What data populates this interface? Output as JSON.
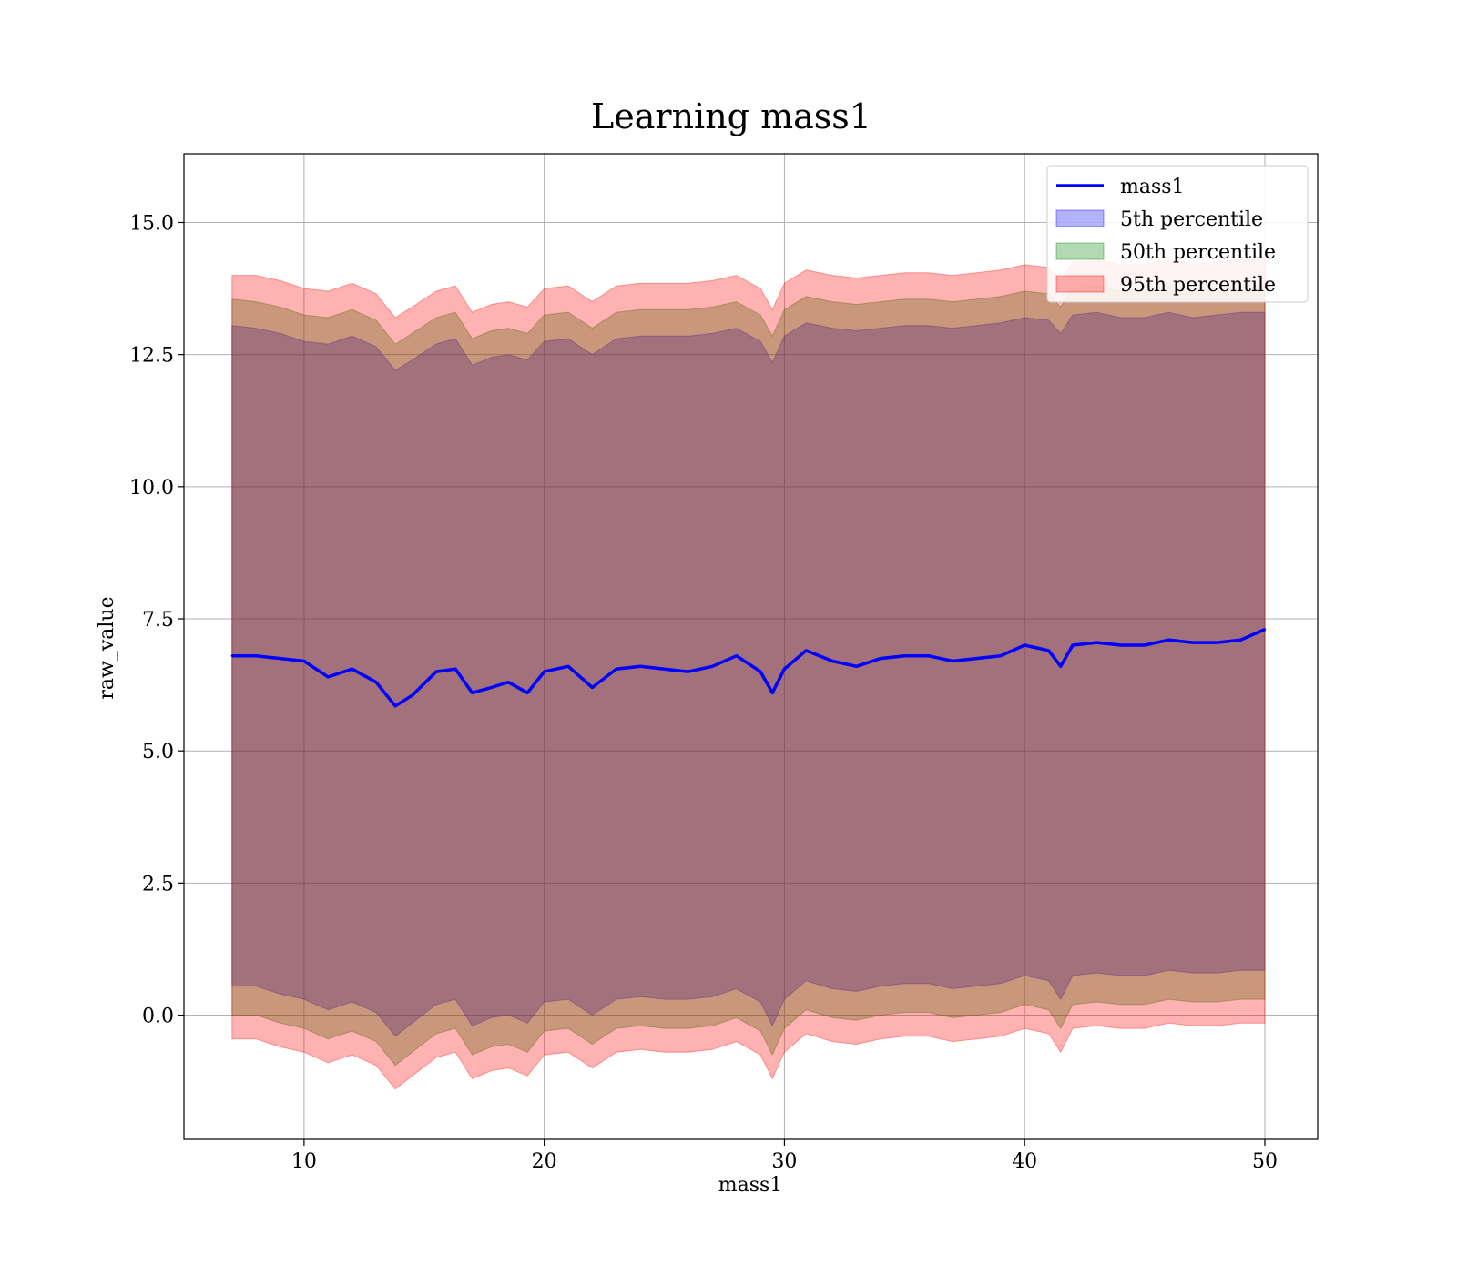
{
  "chart_data": {
    "type": "line",
    "title": "Learning mass1",
    "xlabel": "mass1",
    "ylabel": "raw_value",
    "xlim": [
      5.0,
      52.2
    ],
    "ylim": [
      -2.35,
      16.3
    ],
    "xticks": [
      10,
      20,
      30,
      40,
      50
    ],
    "yticks": [
      0.0,
      2.5,
      5.0,
      7.5,
      10.0,
      12.5,
      15.0
    ],
    "ytick_labels": [
      "0.0",
      "2.5",
      "5.0",
      "7.5",
      "10.0",
      "12.5",
      "15.0"
    ],
    "grid": true,
    "legend_position": "top-right",
    "x": [
      7.0,
      8.0,
      9.0,
      10.0,
      11.0,
      12.0,
      13.0,
      13.8,
      14.5,
      15.5,
      16.3,
      17.0,
      17.8,
      18.5,
      19.3,
      20.0,
      21.0,
      22.0,
      23.0,
      24.0,
      25.0,
      26.0,
      27.0,
      28.0,
      29.0,
      29.5,
      30.0,
      30.9,
      32.0,
      33.0,
      34.0,
      35.0,
      36.0,
      37.0,
      38.0,
      39.0,
      40.0,
      41.0,
      41.5,
      42.0,
      43.0,
      44.0,
      45.0,
      46.0,
      47.0,
      48.0,
      49.0,
      50.0
    ],
    "series": [
      {
        "name": "mass1",
        "color": "#0000ff",
        "values": [
          6.8,
          6.8,
          6.75,
          6.7,
          6.4,
          6.55,
          6.3,
          5.85,
          6.05,
          6.5,
          6.55,
          6.1,
          6.2,
          6.3,
          6.1,
          6.5,
          6.6,
          6.2,
          6.55,
          6.6,
          6.55,
          6.5,
          6.6,
          6.8,
          6.5,
          6.1,
          6.55,
          6.9,
          6.7,
          6.6,
          6.75,
          6.8,
          6.8,
          6.7,
          6.75,
          6.8,
          7.0,
          6.9,
          6.6,
          7.0,
          7.05,
          7.0,
          7.0,
          7.1,
          7.05,
          7.05,
          7.1,
          7.3
        ]
      },
      {
        "name": "5th percentile",
        "color": "#0000ff",
        "upper": [
          13.05,
          13.0,
          12.9,
          12.75,
          12.7,
          12.85,
          12.65,
          12.2,
          12.4,
          12.7,
          12.8,
          12.3,
          12.45,
          12.5,
          12.4,
          12.75,
          12.8,
          12.5,
          12.8,
          12.85,
          12.85,
          12.85,
          12.9,
          13.0,
          12.75,
          12.35,
          12.85,
          13.1,
          13.0,
          12.95,
          13.0,
          13.05,
          13.05,
          13.0,
          13.05,
          13.1,
          13.2,
          13.15,
          12.9,
          13.25,
          13.3,
          13.2,
          13.2,
          13.3,
          13.2,
          13.25,
          13.3,
          13.3
        ],
        "lower": [
          0.55,
          0.55,
          0.4,
          0.3,
          0.1,
          0.25,
          0.05,
          -0.4,
          -0.15,
          0.2,
          0.3,
          -0.2,
          -0.05,
          0.0,
          -0.15,
          0.25,
          0.3,
          0.0,
          0.3,
          0.35,
          0.3,
          0.3,
          0.35,
          0.5,
          0.25,
          -0.2,
          0.3,
          0.65,
          0.5,
          0.45,
          0.55,
          0.6,
          0.6,
          0.5,
          0.55,
          0.6,
          0.75,
          0.65,
          0.3,
          0.75,
          0.8,
          0.75,
          0.75,
          0.85,
          0.8,
          0.8,
          0.85,
          0.85
        ]
      },
      {
        "name": "50th percentile",
        "color": "#008000",
        "upper": [
          13.55,
          13.5,
          13.4,
          13.25,
          13.2,
          13.35,
          13.15,
          12.7,
          12.9,
          13.2,
          13.3,
          12.8,
          12.95,
          13.0,
          12.9,
          13.25,
          13.3,
          13.0,
          13.3,
          13.35,
          13.35,
          13.35,
          13.4,
          13.5,
          13.25,
          12.85,
          13.35,
          13.6,
          13.5,
          13.45,
          13.5,
          13.55,
          13.55,
          13.5,
          13.55,
          13.6,
          13.7,
          13.65,
          13.4,
          13.75,
          13.8,
          13.7,
          13.7,
          13.8,
          13.7,
          13.75,
          13.8,
          13.8
        ],
        "lower": [
          0.0,
          0.0,
          -0.15,
          -0.25,
          -0.45,
          -0.3,
          -0.5,
          -0.95,
          -0.7,
          -0.35,
          -0.25,
          -0.75,
          -0.6,
          -0.55,
          -0.7,
          -0.3,
          -0.25,
          -0.55,
          -0.25,
          -0.2,
          -0.25,
          -0.25,
          -0.2,
          -0.05,
          -0.3,
          -0.75,
          -0.25,
          0.1,
          -0.05,
          -0.1,
          0.0,
          0.05,
          0.05,
          -0.05,
          0.0,
          0.05,
          0.2,
          0.1,
          -0.25,
          0.2,
          0.25,
          0.2,
          0.2,
          0.3,
          0.25,
          0.25,
          0.3,
          0.3
        ]
      },
      {
        "name": "95th percentile",
        "color": "#ff0000",
        "upper": [
          14.0,
          14.0,
          13.9,
          13.75,
          13.7,
          13.85,
          13.65,
          13.2,
          13.4,
          13.7,
          13.8,
          13.3,
          13.45,
          13.5,
          13.4,
          13.75,
          13.8,
          13.5,
          13.8,
          13.85,
          13.85,
          13.85,
          13.9,
          14.0,
          13.75,
          13.35,
          13.85,
          14.1,
          14.0,
          13.95,
          14.0,
          14.05,
          14.05,
          14.0,
          14.05,
          14.1,
          14.2,
          14.15,
          13.9,
          14.25,
          14.3,
          14.2,
          14.2,
          14.3,
          14.2,
          14.25,
          14.3,
          14.3
        ],
        "lower": [
          -0.45,
          -0.45,
          -0.6,
          -0.7,
          -0.9,
          -0.75,
          -0.95,
          -1.4,
          -1.15,
          -0.8,
          -0.7,
          -1.2,
          -1.05,
          -1.0,
          -1.15,
          -0.75,
          -0.7,
          -1.0,
          -0.7,
          -0.65,
          -0.7,
          -0.7,
          -0.65,
          -0.5,
          -0.75,
          -1.2,
          -0.7,
          -0.35,
          -0.5,
          -0.55,
          -0.45,
          -0.4,
          -0.4,
          -0.5,
          -0.45,
          -0.4,
          -0.25,
          -0.35,
          -0.7,
          -0.25,
          -0.2,
          -0.25,
          -0.25,
          -0.15,
          -0.2,
          -0.2,
          -0.15,
          -0.15
        ]
      }
    ]
  }
}
